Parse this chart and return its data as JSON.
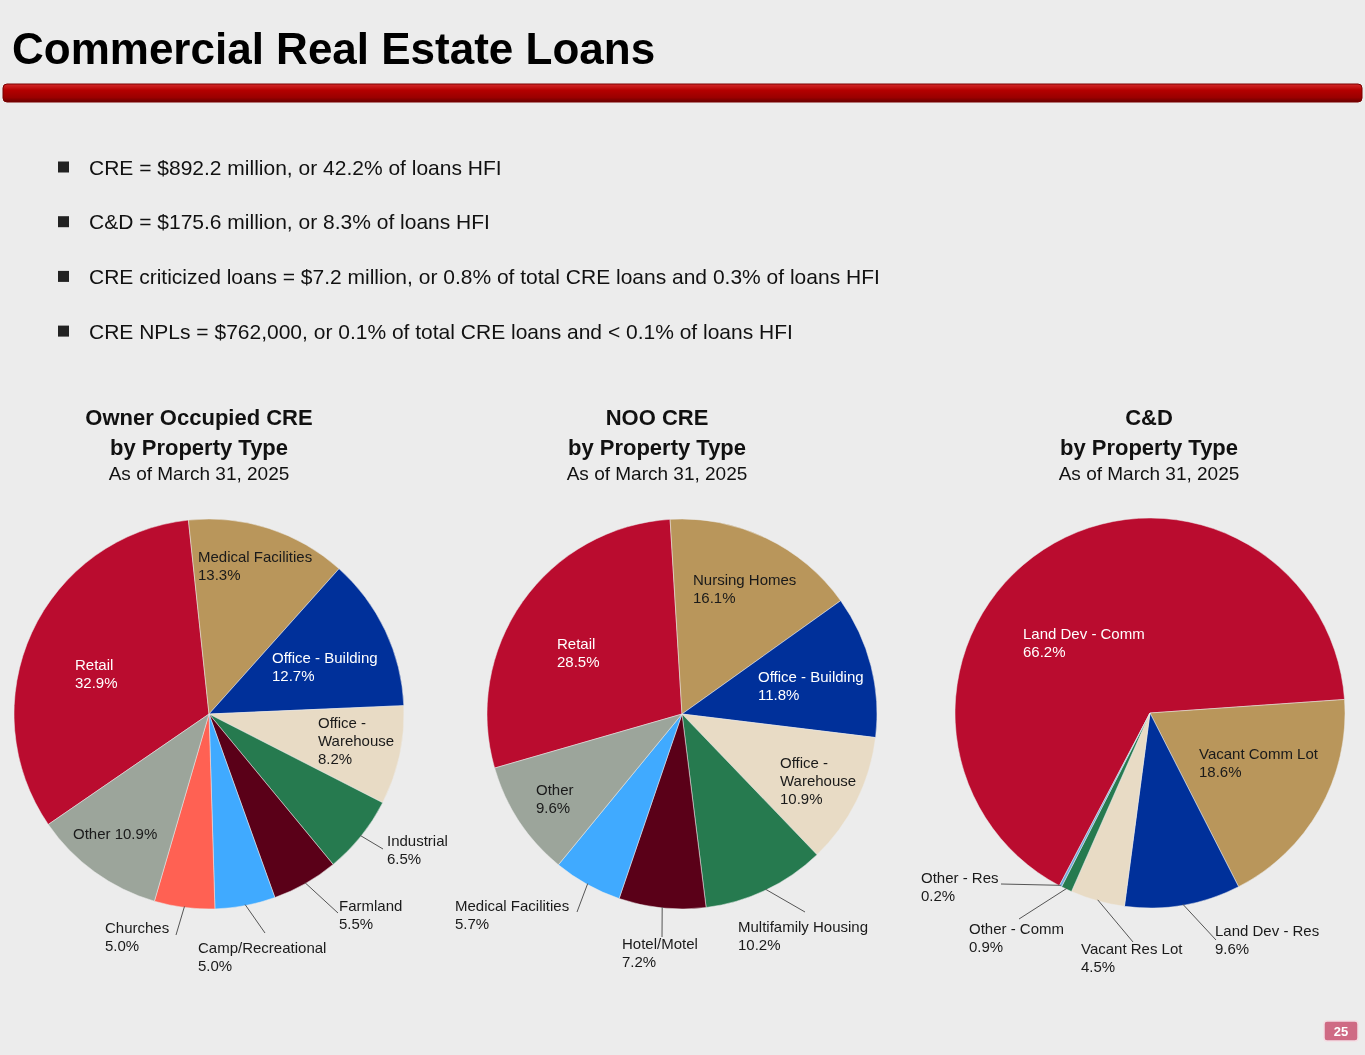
{
  "chart_data": [
    {
      "type": "other",
      "title": "Commercial Real Estate Loans",
      "annotations": [
        "CRE = $892.2 million, or 42.2% of loans HFI",
        "C&D = $175.6 million, or 8.3% of loans HFI",
        "CRE criticized loans = $7.2 million, or 0.8% of total CRE loans and 0.3% of loans HFI",
        "CRE NPLs = $762,000, or 0.1% of total CRE loans and < 0.1% of loans HFI",
        "25"
      ]
    },
    {
      "type": "pie",
      "title": "Owner Occupied CRE\nby Property Type",
      "subtitle": "As of March 31, 2025",
      "categories": [
        "Retail",
        "Medical Facilities",
        "Office - Building",
        "Office - Warehouse",
        "Industrial",
        "Farmland",
        "Camp/Recreational",
        "Churches",
        "Other"
      ],
      "values": [
        32.9,
        13.3,
        12.7,
        8.2,
        6.5,
        5.5,
        5.0,
        5.0,
        10.9
      ],
      "colors": [
        "#ba0c2f",
        "#b9965b",
        "#00309a",
        "#e8dbc5",
        "#267a4f",
        "#5a0018",
        "#40aaff",
        "#ff6153",
        "#9ca59b"
      ],
      "value_labels": [
        "32.9%",
        "13.3%",
        "12.7%",
        "8.2%",
        "6.5%",
        "5.5%",
        "5.0%",
        "5.0%",
        "10.9%"
      ]
    },
    {
      "type": "pie",
      "title": "NOO CRE\nby Property Type",
      "subtitle": "As of March 31, 2025",
      "categories": [
        "Retail",
        "Nursing Homes",
        "Office - Building",
        "Office - Warehouse",
        "Multifamily Housing",
        "Hotel/Motel",
        "Medical Facilities",
        "Other"
      ],
      "values": [
        28.5,
        16.1,
        11.8,
        10.9,
        10.2,
        7.2,
        5.7,
        9.6
      ],
      "colors": [
        "#ba0c2f",
        "#b9965b",
        "#00309a",
        "#e8dbc5",
        "#267a4f",
        "#5a0018",
        "#40aaff",
        "#9ca59b"
      ],
      "value_labels": [
        "28.5%",
        "16.1%",
        "11.8%",
        "10.9%",
        "10.2%",
        "7.2%",
        "5.7%",
        "9.6%"
      ]
    },
    {
      "type": "pie",
      "title": "C&D\nby Property Type",
      "subtitle": "As of March 31, 2025",
      "categories": [
        "Land Dev - Comm",
        "Vacant Comm Lot",
        "Land Dev - Res",
        "Vacant Res Lot",
        "Other - Comm",
        "Other - Res"
      ],
      "values": [
        66.2,
        18.6,
        9.6,
        4.5,
        0.9,
        0.2
      ],
      "colors": [
        "#ba0c2f",
        "#b9965b",
        "#00309a",
        "#e8dbc5",
        "#267a4f",
        "#6fa8dc"
      ],
      "value_labels": [
        "66.2%",
        "18.6%",
        "9.6%",
        "4.5%",
        "0.9%",
        "0.2%"
      ]
    }
  ]
}
